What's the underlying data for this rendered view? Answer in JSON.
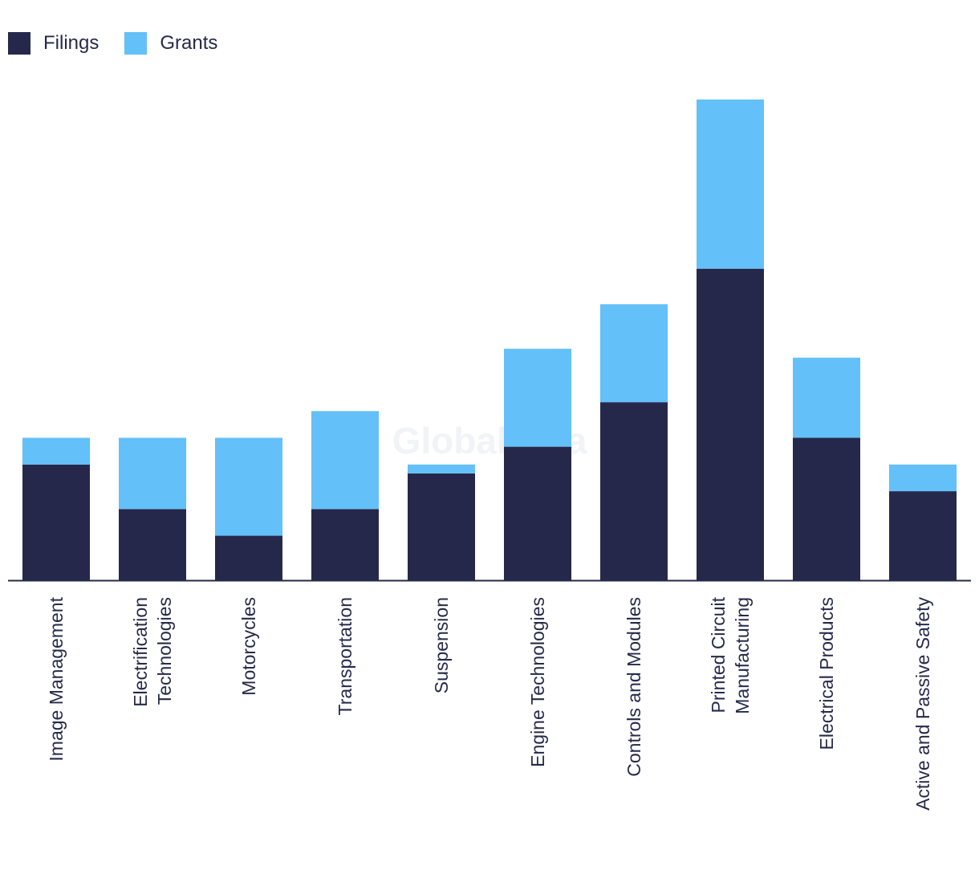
{
  "legend": {
    "filings_label": "Filings",
    "grants_label": "Grants"
  },
  "colors": {
    "filings": "#26284b",
    "grants": "#63c0f8",
    "axis": "#262a4a",
    "text": "#262a4a"
  },
  "watermark": "GlobalData",
  "chart_data": {
    "type": "bar",
    "stacked": true,
    "categories": [
      [
        "Image Management"
      ],
      [
        "Electrification",
        "Technologies"
      ],
      [
        "Motorcycles"
      ],
      [
        "Transportation"
      ],
      [
        "Suspension"
      ],
      [
        "Engine Technologies"
      ],
      [
        "Controls and Modules"
      ],
      [
        "Printed Circuit",
        "Manufacturing"
      ],
      [
        "Electrical Products"
      ],
      [
        "Active and Passive Safety"
      ]
    ],
    "series": [
      {
        "name": "Filings",
        "values": [
          13,
          8,
          5,
          8,
          12,
          15,
          20,
          35,
          16,
          10
        ]
      },
      {
        "name": "Grants",
        "values": [
          3,
          8,
          11,
          11,
          1,
          11,
          11,
          19,
          9,
          3
        ]
      }
    ],
    "ylim": [
      0,
      54
    ],
    "grid": false,
    "legend_position": "top-left"
  }
}
